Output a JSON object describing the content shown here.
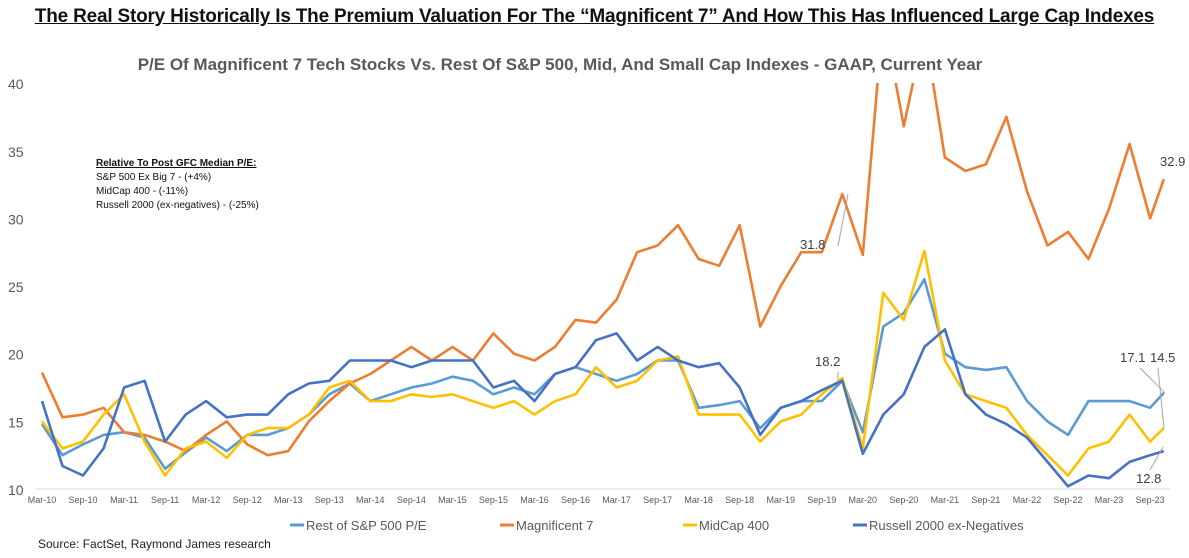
{
  "header": {
    "title": "The Real Story Historically Is The Premium Valuation For The “Magnificent 7” And How This Has Influenced Large Cap Indexes"
  },
  "note": {
    "heading": "Relative To Post GFC Median P/E:",
    "lines": [
      "S&P 500 Ex Big 7 - (+4%)",
      "MidCap 400 - (-11%)",
      "Russell 2000 (ex-negatives) - (-25%)"
    ]
  },
  "source": "Source: FactSet, Raymond James research",
  "chart_data": {
    "type": "line",
    "title": "P/E Of Magnificent 7 Tech Stocks Vs. Rest Of S&P 500, Mid, And Small Cap Indexes - GAAP, Current Year",
    "ylim": [
      10,
      40
    ],
    "yticks": [
      10,
      15,
      20,
      25,
      30,
      35,
      40
    ],
    "xtick_labels": [
      "Mar-10",
      "Sep-10",
      "Mar-11",
      "Sep-11",
      "Mar-12",
      "Sep-12",
      "Mar-13",
      "Sep-13",
      "Mar-14",
      "Sep-14",
      "Mar-15",
      "Sep-15",
      "Mar-16",
      "Sep-16",
      "Mar-17",
      "Sep-17",
      "Mar-18",
      "Sep-18",
      "Mar-19",
      "Sep-19",
      "Mar-20",
      "Sep-20",
      "Mar-21",
      "Sep-21",
      "Mar-22",
      "Sep-22",
      "Mar-23",
      "Sep-23"
    ],
    "grid": false,
    "legend": "bottom",
    "x": [
      "2010-03",
      "2010-06",
      "2010-09",
      "2010-12",
      "2011-03",
      "2011-06",
      "2011-09",
      "2011-12",
      "2012-03",
      "2012-06",
      "2012-09",
      "2012-12",
      "2013-03",
      "2013-06",
      "2013-09",
      "2013-12",
      "2014-03",
      "2014-06",
      "2014-09",
      "2014-12",
      "2015-03",
      "2015-06",
      "2015-09",
      "2015-12",
      "2016-03",
      "2016-06",
      "2016-09",
      "2016-12",
      "2017-03",
      "2017-06",
      "2017-09",
      "2017-12",
      "2018-03",
      "2018-06",
      "2018-09",
      "2018-12",
      "2019-03",
      "2019-06",
      "2019-09",
      "2019-12",
      "2020-03",
      "2020-06",
      "2020-09",
      "2020-12",
      "2021-03",
      "2021-06",
      "2021-09",
      "2021-12",
      "2022-03",
      "2022-06",
      "2022-09",
      "2022-12",
      "2023-03",
      "2023-06",
      "2023-09",
      "2023-11"
    ],
    "series": [
      {
        "name": "Rest of S&P 500 P/E",
        "color": "#5B9BD5",
        "values": [
          14.8,
          12.5,
          13.3,
          14,
          14.2,
          13.8,
          11.5,
          12.7,
          13.8,
          12.8,
          14,
          14,
          14.5,
          15.5,
          17,
          17.8,
          16.5,
          17,
          17.5,
          17.8,
          18.3,
          18,
          17,
          17.5,
          17,
          18.5,
          19,
          18.5,
          18,
          18.5,
          19.5,
          19.5,
          16,
          16.2,
          16.5,
          14.5,
          16,
          16.5,
          16.5,
          18,
          14.2,
          22,
          23,
          25.5,
          20,
          19,
          18.8,
          19,
          16.5,
          15,
          14,
          16.5,
          16.5,
          16.5,
          16,
          17.1
        ]
      },
      {
        "name": "Magnificent 7",
        "color": "#ED7D31",
        "values": [
          18.6,
          15.3,
          15.5,
          16,
          14.2,
          14,
          13.5,
          12.8,
          14,
          15,
          13.3,
          12.5,
          12.8,
          15,
          16.5,
          17.8,
          18.5,
          19.5,
          20.5,
          19.5,
          20.5,
          19.5,
          21.5,
          20,
          19.5,
          20.5,
          22.5,
          22.3,
          24,
          27.5,
          28,
          29.5,
          27,
          26.5,
          29.5,
          22,
          25,
          27.5,
          27.5,
          31.8,
          27.3,
          45,
          36.8,
          44,
          34.5,
          33.5,
          34,
          37.5,
          32,
          28,
          29,
          27,
          30.7,
          35.5,
          30,
          32.9
        ]
      },
      {
        "name": "MidCap 400",
        "color": "#FFC000",
        "values": [
          15,
          13,
          13.5,
          15.5,
          17,
          13.5,
          11,
          13,
          13.5,
          12.3,
          14,
          14.5,
          14.5,
          15.5,
          17.5,
          18,
          16.5,
          16.5,
          17,
          16.8,
          17,
          16.5,
          16,
          16.5,
          15.5,
          16.5,
          17,
          19,
          17.5,
          18,
          19.5,
          19.8,
          15.5,
          15.5,
          15.5,
          13.5,
          15,
          15.5,
          17,
          18.2,
          13,
          24.5,
          22.5,
          27.6,
          19.5,
          17,
          16.5,
          16,
          14,
          12.5,
          11,
          13,
          13.5,
          15.5,
          13.5,
          14.5
        ]
      },
      {
        "name": "Russell 2000 ex-Negatives",
        "color": "#4472C4",
        "values": [
          16.5,
          11.7,
          11,
          13,
          17.5,
          18,
          13.5,
          15.5,
          16.5,
          15.3,
          15.5,
          15.5,
          17,
          17.8,
          18,
          19.5,
          19.5,
          19.5,
          19,
          19.5,
          19.5,
          19.5,
          17.5,
          18,
          16.5,
          18.5,
          19,
          21,
          21.5,
          19.5,
          20.5,
          19.5,
          19,
          19.3,
          17.5,
          14,
          16,
          16.5,
          17.3,
          18,
          12.6,
          15.5,
          17,
          20.5,
          21.8,
          17,
          15.5,
          14.8,
          13.8,
          12,
          10.2,
          11,
          10.8,
          12,
          12.5,
          12.8
        ]
      }
    ],
    "annotations": [
      "31.8",
      "18.2",
      "17.1",
      "14.5",
      "12.8",
      "32.9"
    ]
  }
}
